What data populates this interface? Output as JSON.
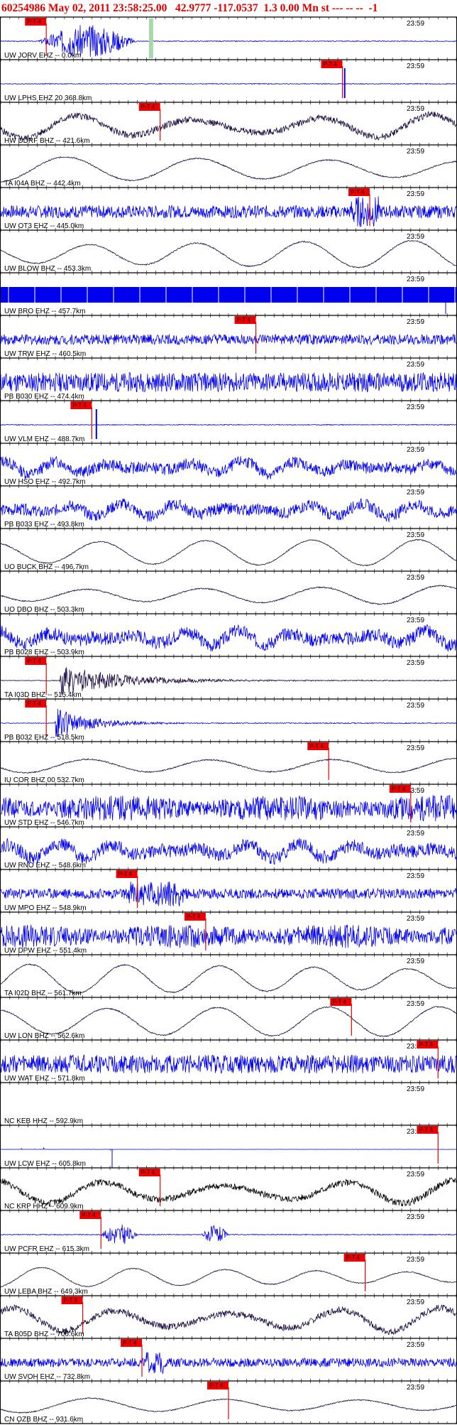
{
  "header": {
    "event_id": "60254986",
    "datetime": "May 02, 2011 23:58:25.00",
    "lat": "42.9777",
    "lon": "-117.0537",
    "info": "1.3 0.00 Mn st",
    "dashes": "--- -- --",
    "tail": "-1",
    "color": "#e00000"
  },
  "colors": {
    "blue_trace": "#0000ee",
    "dark_trace": "#1a0a40",
    "black_trace": "#000000",
    "pick_box": "#ee0000",
    "pick_line": "#ee0000",
    "green_marker": "#a8d8a8",
    "tick": "#000000",
    "border": "#000000"
  },
  "time_label": "23:59",
  "pick_label": "P-T 4",
  "traces": [
    {
      "label": "UW JORV EHZ -- 0.0km",
      "color": "blue",
      "style": "burst",
      "burst": [
        0.08,
        0.3
      ],
      "amp": 0.9,
      "pick": 0.1,
      "green": 0.33
    },
    {
      "label": "UW LPHS EHZ 20 368.8km",
      "color": "blue",
      "style": "flat_spike",
      "spike": 0.755,
      "amp": 0.9,
      "pick": 0.75
    },
    {
      "label": "HW DDRF BHZ -- 421.6km",
      "color": "dark",
      "style": "wave_hf",
      "amp": 0.8,
      "pick": 0.35
    },
    {
      "label": "TA I04A BHZ -- 442.4km",
      "color": "dark",
      "style": "wave",
      "amp": 0.8,
      "pick": null
    },
    {
      "label": "UW OT3 EHZ -- 445.0km",
      "color": "blue",
      "style": "noise_burst",
      "burst": [
        0.77,
        0.83
      ],
      "amp": 0.85,
      "pick": 0.81
    },
    {
      "label": "UW BLOW BHZ -- 453.3km",
      "color": "dark",
      "style": "wave",
      "amp": 0.8,
      "pick": null
    },
    {
      "label": "UW BRO EHZ -- 457.7km",
      "color": "blue",
      "style": "saturated",
      "amp": 1.0,
      "pick": null
    },
    {
      "label": "UW TRW EHZ -- 460.5km",
      "color": "blue",
      "style": "noise",
      "amp": 0.4,
      "pick": 0.56
    },
    {
      "label": "PB B030 EHZ -- 474.4km",
      "color": "blue",
      "style": "noise",
      "amp": 0.75,
      "pick": null
    },
    {
      "label": "UW VLM EHZ -- 488.7km",
      "color": "blue",
      "style": "flat_spike",
      "spike": 0.21,
      "amp": 0.9,
      "pick": 0.2
    },
    {
      "label": "UW HSO EHZ -- 492.7km",
      "color": "blue",
      "style": "noise_wave",
      "amp": 0.7,
      "pick": null
    },
    {
      "label": "PB B033 EHZ -- 493.8km",
      "color": "blue",
      "style": "noise_wave",
      "amp": 0.7,
      "pick": null
    },
    {
      "label": "UO BUCK BHZ -- 496.7km",
      "color": "dark",
      "style": "wave",
      "amp": 0.7,
      "pick": null
    },
    {
      "label": "UO DBO BHZ -- 503.3km",
      "color": "dark",
      "style": "wave",
      "amp": 0.8,
      "pick": null
    },
    {
      "label": "PB B028 EHZ -- 503.9km",
      "color": "blue",
      "style": "noise_wave",
      "amp": 0.8,
      "pick": null
    },
    {
      "label": "TA I03D BHZ -- 515.4km",
      "color": "dark",
      "style": "burst_decay",
      "burst": [
        0.13,
        0.3
      ],
      "amp": 0.9,
      "pick": 0.1
    },
    {
      "label": "PB B032 EHZ -- 518.5km",
      "color": "blue",
      "style": "burst_decay",
      "burst": [
        0.12,
        0.22
      ],
      "amp": 0.9,
      "pick": 0.1
    },
    {
      "label": "IU COR BHZ 00 532.7km",
      "color": "dark",
      "style": "wave",
      "amp": 0.8,
      "pick": 0.72
    },
    {
      "label": "UW STD EHZ -- 546.7km",
      "color": "blue",
      "style": "dense",
      "amp": 0.9,
      "pick": 0.9
    },
    {
      "label": "UW RNO EHZ -- 548.6km",
      "color": "blue",
      "style": "noise_wave",
      "amp": 0.8,
      "pick": null
    },
    {
      "label": "UW MPO EHZ -- 548.9km",
      "color": "blue",
      "style": "noise_burst",
      "burst": [
        0.28,
        0.4
      ],
      "amp": 0.7,
      "pick": 0.3
    },
    {
      "label": "UW DPW EHZ -- 551.4km",
      "color": "blue",
      "style": "dense",
      "amp": 0.8,
      "pick": 0.45
    },
    {
      "label": "TA I02D BHZ -- 561.7km",
      "color": "dark",
      "style": "wave",
      "amp": 0.8,
      "pick": null
    },
    {
      "label": "UW LON BHZ -- 562.6km",
      "color": "dark",
      "style": "wave",
      "amp": 0.8,
      "pick": 0.77
    },
    {
      "label": "UW WAT EHZ -- 571.8km",
      "color": "blue",
      "style": "noise",
      "amp": 0.7,
      "pick": 0.96
    },
    {
      "label": "NC KEB HHZ -- 592.9km",
      "color": "blue",
      "style": "empty",
      "amp": 0.0,
      "pick": null
    },
    {
      "label": "UW LCW EHZ -- 605.8km",
      "color": "blue",
      "style": "flat_lcw",
      "amp": 0.3,
      "pick": 0.96
    },
    {
      "label": "NC KRP HHZ -- 609.9km",
      "color": "black",
      "style": "wave_hf",
      "amp": 0.8,
      "pick": 0.35
    },
    {
      "label": "UW PCFR EHZ -- 615.3km",
      "color": "blue",
      "style": "flat_burst2",
      "burst": [
        0.22,
        0.3
      ],
      "amp": 0.8,
      "pick": 0.22
    },
    {
      "label": "UW LEBA BHZ -- 649.3km",
      "color": "dark",
      "style": "wave",
      "amp": 0.6,
      "pick": 0.8
    },
    {
      "label": "TA B05D BHZ -- 706.6km",
      "color": "dark",
      "style": "wave_hf",
      "amp": 0.8,
      "pick": 0.18
    },
    {
      "label": "UW SVOH EHZ -- 732.8km",
      "color": "blue",
      "style": "noise_burst",
      "burst": [
        0.32,
        0.36
      ],
      "amp": 0.6,
      "pick": 0.31
    },
    {
      "label": "CN OZB BHZ -- 931.6km",
      "color": "dark",
      "style": "wave",
      "amp": 0.7,
      "pick": 0.5
    }
  ]
}
